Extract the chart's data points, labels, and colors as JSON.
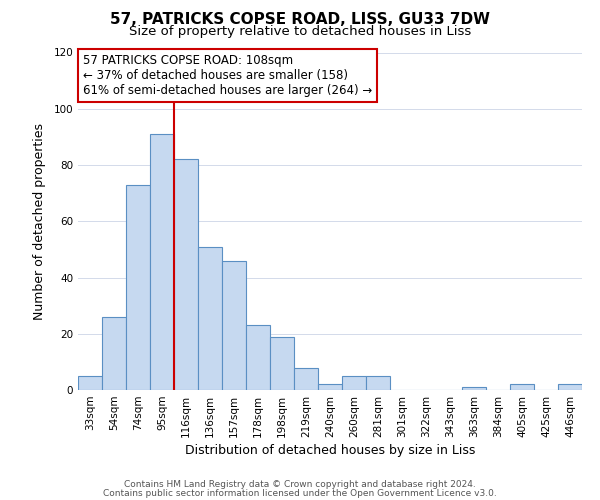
{
  "title": "57, PATRICKS COPSE ROAD, LISS, GU33 7DW",
  "subtitle": "Size of property relative to detached houses in Liss",
  "xlabel": "Distribution of detached houses by size in Liss",
  "ylabel": "Number of detached properties",
  "bar_labels": [
    "33sqm",
    "54sqm",
    "74sqm",
    "95sqm",
    "116sqm",
    "136sqm",
    "157sqm",
    "178sqm",
    "198sqm",
    "219sqm",
    "240sqm",
    "260sqm",
    "281sqm",
    "301sqm",
    "322sqm",
    "343sqm",
    "363sqm",
    "384sqm",
    "405sqm",
    "425sqm",
    "446sqm"
  ],
  "bar_values": [
    5,
    26,
    73,
    91,
    82,
    51,
    46,
    23,
    19,
    8,
    2,
    5,
    5,
    0,
    0,
    0,
    1,
    0,
    2,
    0,
    2
  ],
  "bar_color": "#c6d9f0",
  "bar_edge_color": "#5a8fc3",
  "vline_color": "#cc0000",
  "vline_index": 3.5,
  "ylim": [
    0,
    120
  ],
  "yticks": [
    0,
    20,
    40,
    60,
    80,
    100,
    120
  ],
  "annotation_line1": "57 PATRICKS COPSE ROAD: 108sqm",
  "annotation_line2": "← 37% of detached houses are smaller (158)",
  "annotation_line3": "61% of semi-detached houses are larger (264) →",
  "annotation_box_color": "#ffffff",
  "annotation_box_edge": "#cc0000",
  "footer_line1": "Contains HM Land Registry data © Crown copyright and database right 2024.",
  "footer_line2": "Contains public sector information licensed under the Open Government Licence v3.0.",
  "background_color": "#ffffff",
  "grid_color": "#d3daea",
  "title_fontsize": 11,
  "subtitle_fontsize": 9.5,
  "xlabel_fontsize": 9,
  "ylabel_fontsize": 9,
  "tick_fontsize": 7.5,
  "annotation_fontsize": 8.5,
  "footer_fontsize": 6.5
}
